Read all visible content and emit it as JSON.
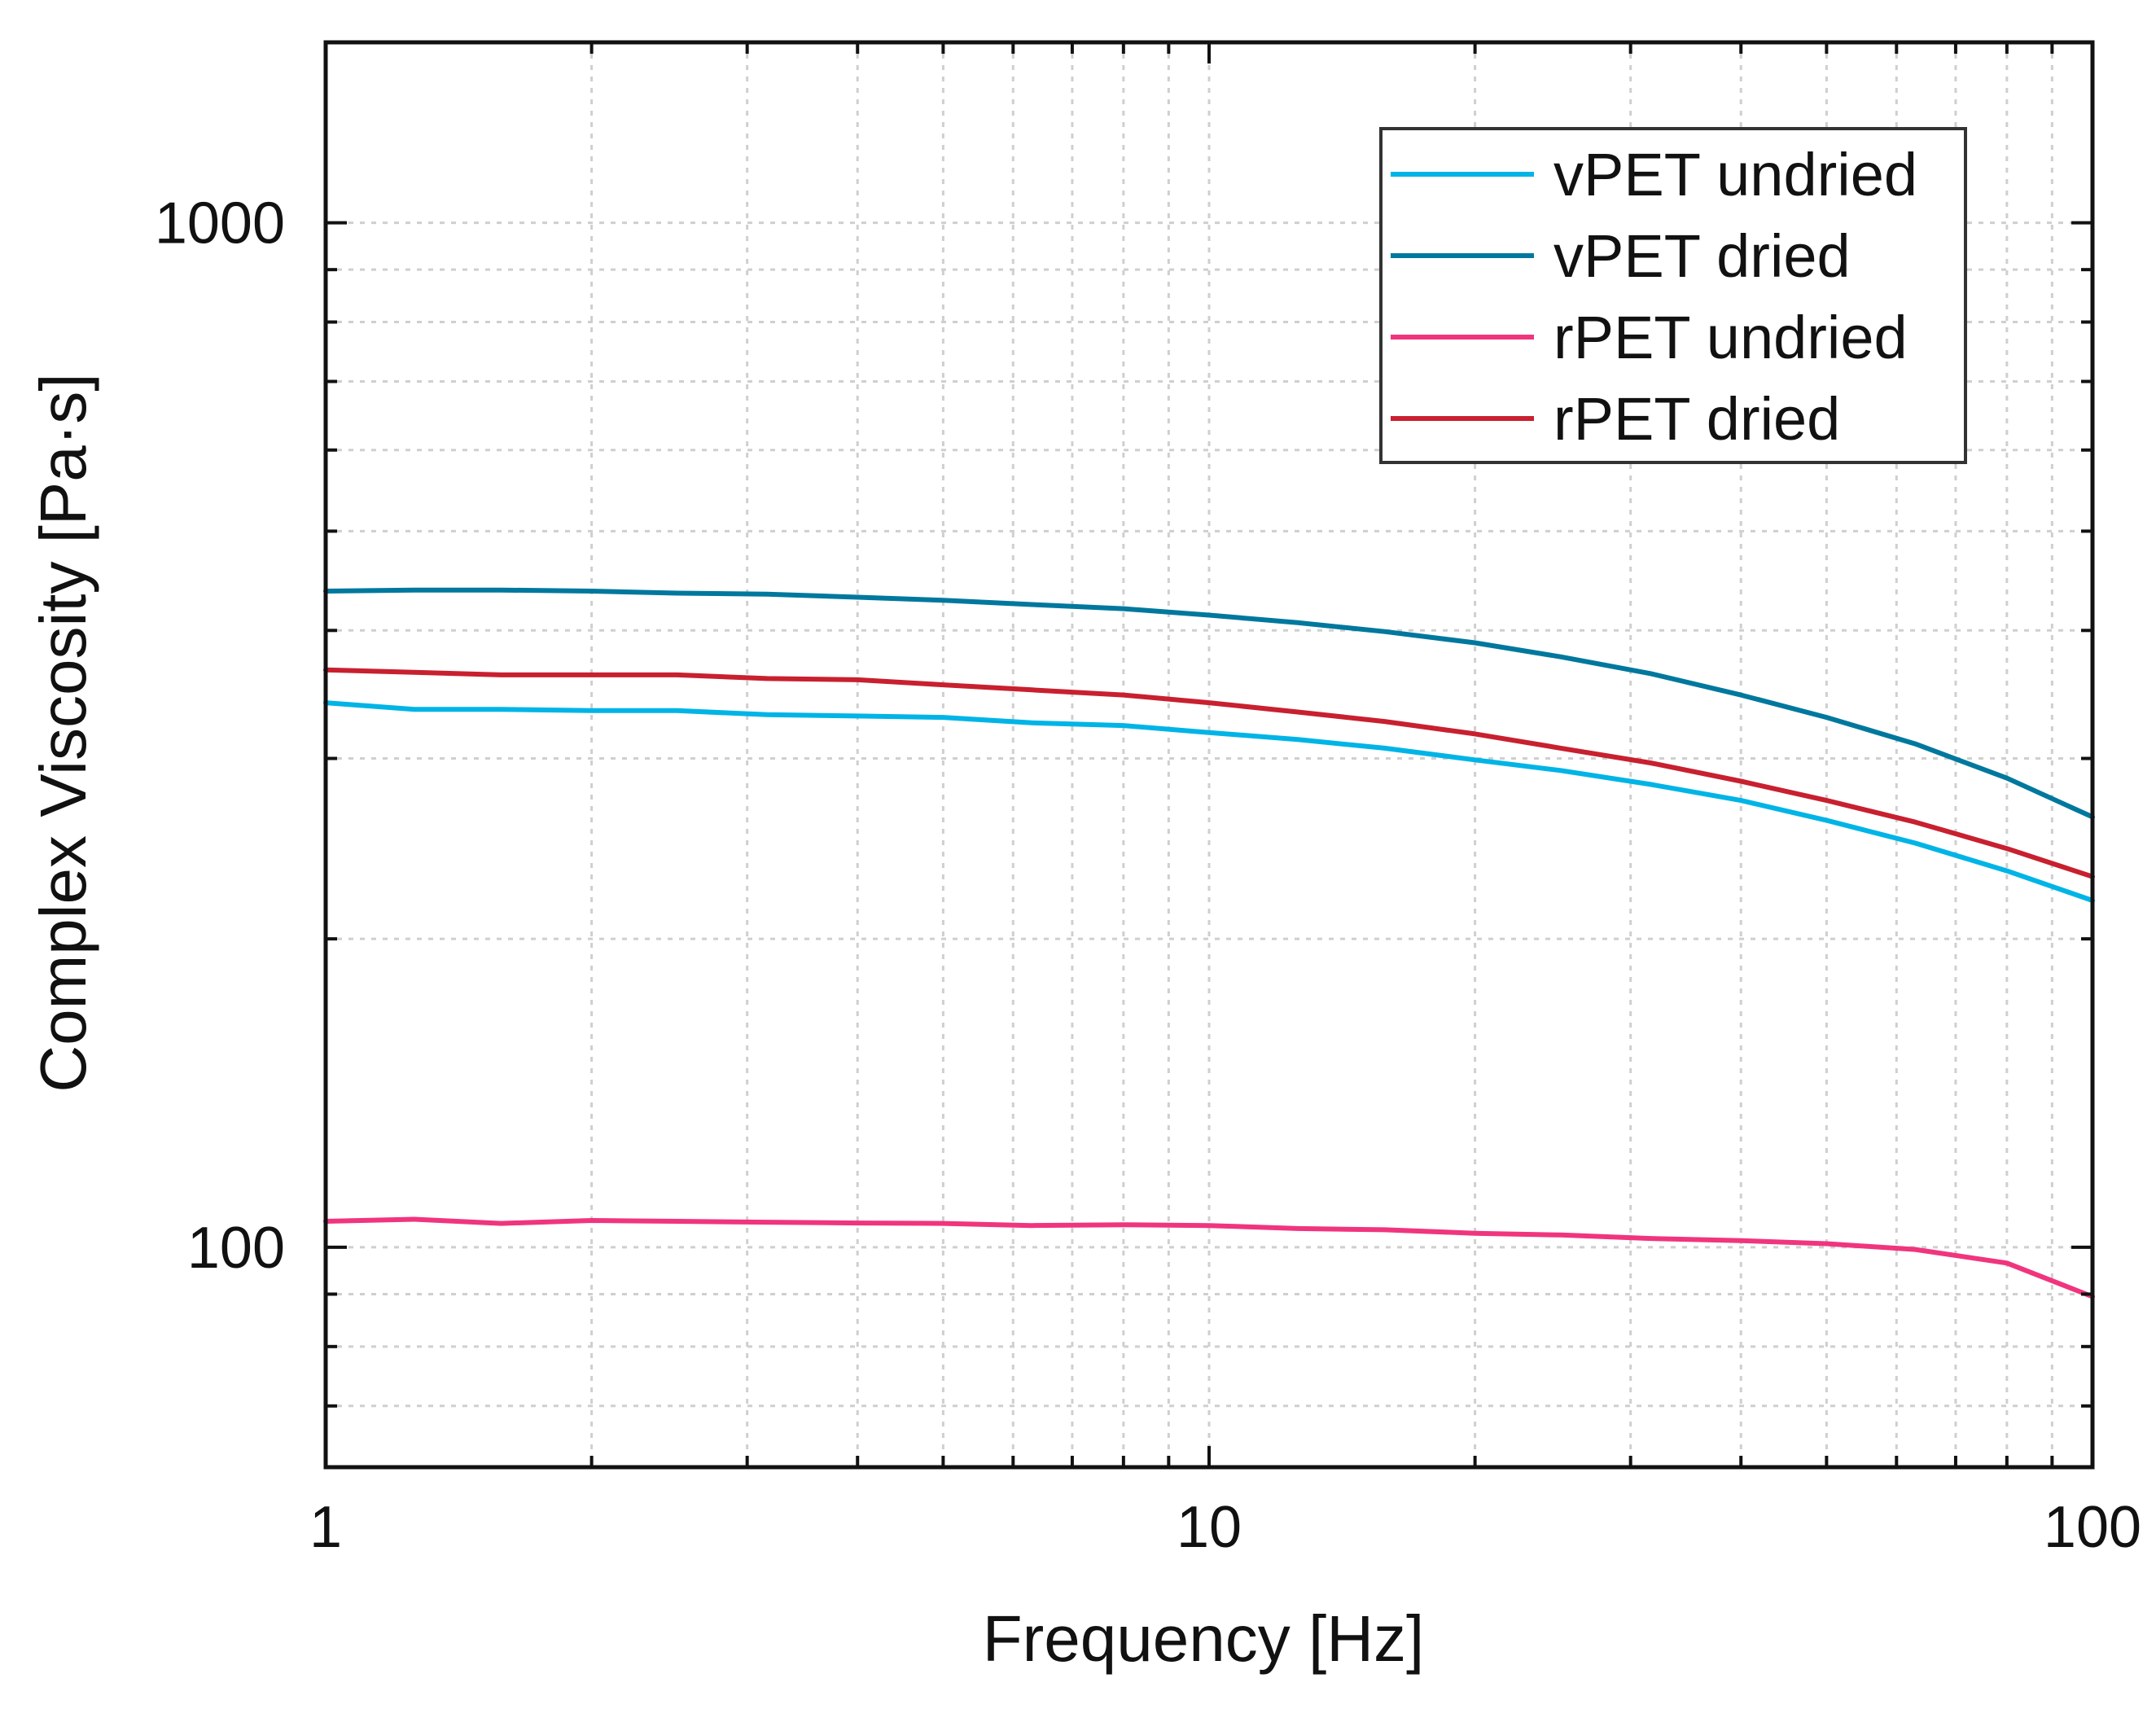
{
  "chart_data": {
    "type": "line",
    "title": "",
    "xlabel": "Frequency [Hz]",
    "ylabel": "Complex Viscosity [Pa·s]",
    "x_scale": "log",
    "y_scale": "log",
    "xlim": [
      1,
      100
    ],
    "ylim": [
      61,
      1500
    ],
    "x_ticks": [
      "1",
      "10",
      "100"
    ],
    "y_ticks": [
      "100",
      "1000"
    ],
    "grid": true,
    "legend_position": "top-right",
    "series": [
      {
        "name": "vPET undried",
        "color": "#00b4e6",
        "x": [
          1,
          1.26,
          1.58,
          2,
          2.5,
          3.16,
          4,
          5,
          6.3,
          8,
          10,
          12.6,
          15.8,
          20,
          25,
          31.6,
          40,
          50,
          63,
          80,
          100
        ],
        "y": [
          340,
          335,
          335,
          334,
          334,
          331,
          330,
          329,
          325,
          323,
          318,
          313,
          307,
          299,
          292,
          283,
          273,
          261,
          248,
          233,
          218
        ]
      },
      {
        "name": "vPET dried",
        "color": "#00789e",
        "x": [
          1,
          1.26,
          1.58,
          2,
          2.5,
          3.16,
          4,
          5,
          6.3,
          8,
          10,
          12.6,
          15.8,
          20,
          25,
          31.6,
          40,
          50,
          63,
          80,
          100
        ],
        "y": [
          437,
          438,
          438,
          437,
          435,
          434,
          431,
          428,
          424,
          420,
          414,
          407,
          399,
          389,
          377,
          363,
          346,
          329,
          310,
          287,
          263
        ]
      },
      {
        "name": "rPET undried",
        "color": "#f0357e",
        "x": [
          1,
          1.26,
          1.58,
          2,
          2.5,
          3.16,
          4,
          5,
          6.3,
          8,
          10,
          12.6,
          15.8,
          20,
          25,
          31.6,
          40,
          50,
          63,
          80,
          100
        ],
        "y": [
          106,
          106.5,
          105.5,
          106.2,
          106,
          105.8,
          105.6,
          105.5,
          105,
          105.2,
          105,
          104.3,
          104,
          103.2,
          102.8,
          102,
          101.5,
          100.8,
          99.5,
          96.5,
          89.5
        ]
      },
      {
        "name": "rPET dried",
        "color": "#c8202f",
        "x": [
          1,
          1.26,
          1.58,
          2,
          2.5,
          3.16,
          4,
          5,
          6.3,
          8,
          10,
          12.6,
          15.8,
          20,
          25,
          31.6,
          40,
          50,
          63,
          80,
          100
        ],
        "y": [
          366,
          364,
          362,
          362,
          362,
          359,
          358,
          354,
          350,
          346,
          340,
          333,
          326,
          317,
          307,
          297,
          285,
          273,
          260,
          245,
          230
        ]
      }
    ]
  }
}
